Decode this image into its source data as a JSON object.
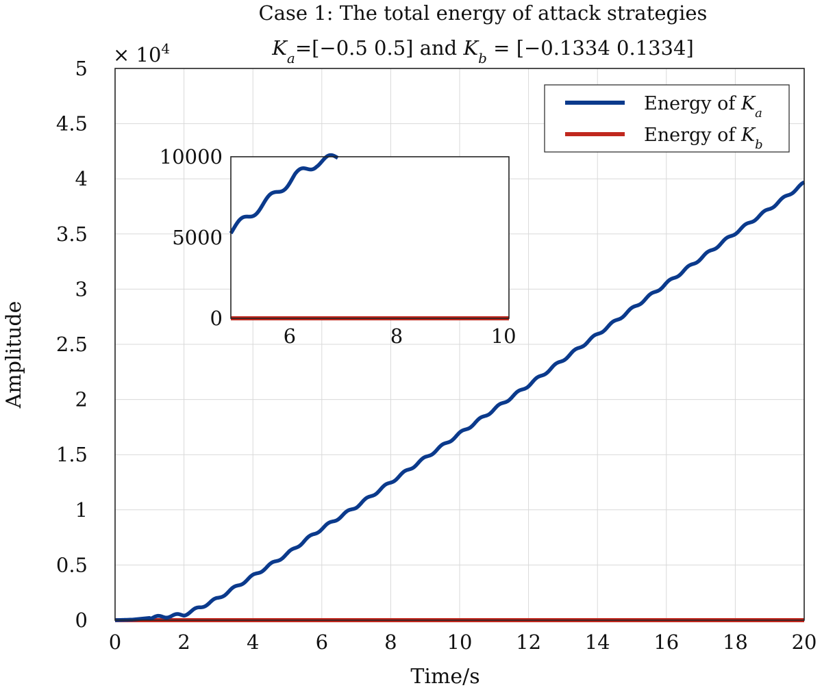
{
  "chart_data": [
    {
      "type": "line",
      "title": "Case 1: The total energy of attack strategies",
      "subtitle_parts": [
        "K",
        "a",
        "=[−0.5 0.5] and ",
        "K",
        "b",
        " = [−0.1334 0.1334]"
      ],
      "xlabel": "Time/s",
      "ylabel": "Amplitude",
      "y_multiplier": "× 10",
      "y_multiplier_exponent": "4",
      "xlim": [
        0,
        20
      ],
      "ylim": [
        0,
        5
      ],
      "x_ticks": [
        "0",
        "2",
        "4",
        "6",
        "8",
        "10",
        "12",
        "14",
        "16",
        "18",
        "20"
      ],
      "y_ticks": [
        "0",
        "0.5",
        "1",
        "1.5",
        "2",
        "2.5",
        "3",
        "3.5",
        "4",
        "4.5",
        "5"
      ],
      "grid": true,
      "legend_position": "top-right",
      "series": [
        {
          "name_text": "Energy of ",
          "name_symbol": "K",
          "name_subscript": "a",
          "color": "#0b3a8c",
          "x": [
            0,
            0.5,
            1,
            1.5,
            2,
            2.5,
            3,
            3.5,
            4,
            4.5,
            5,
            5.5,
            6,
            6.5,
            7,
            7.5,
            8,
            8.5,
            9,
            9.5,
            10,
            11,
            12,
            13,
            14,
            15,
            16,
            17,
            18,
            19,
            20
          ],
          "y": [
            0,
            0.005,
            0.02,
            0.035,
            0.05,
            0.12,
            0.2,
            0.3,
            0.4,
            0.5,
            0.6,
            0.72,
            0.83,
            0.93,
            1.03,
            1.14,
            1.25,
            1.36,
            1.47,
            1.58,
            1.69,
            1.91,
            2.13,
            2.36,
            2.59,
            2.82,
            3.05,
            3.28,
            3.51,
            3.73,
            3.96
          ]
        },
        {
          "name_text": "Energy of ",
          "name_symbol": "K",
          "name_subscript": "b",
          "color": "#c0281e",
          "x": [
            0,
            20
          ],
          "y": [
            0,
            0
          ]
        }
      ]
    },
    {
      "type": "line",
      "role": "inset",
      "xlim": [
        4.9,
        10.1
      ],
      "ylim": [
        0,
        10000
      ],
      "x_ticks": [
        "6",
        "8",
        "10"
      ],
      "y_ticks": [
        "0",
        "5000",
        "10000"
      ],
      "grid": false,
      "series": [
        {
          "color": "#0b3a8c",
          "x": [
            4.9,
            5.3,
            5.7,
            6.1,
            6.5,
            6.9
          ],
          "y": [
            5400,
            6500,
            7600,
            8800,
            9600,
            10000
          ]
        },
        {
          "color": "#c0281e",
          "x": [
            4.9,
            10.1
          ],
          "y": [
            0,
            0
          ]
        }
      ]
    }
  ]
}
